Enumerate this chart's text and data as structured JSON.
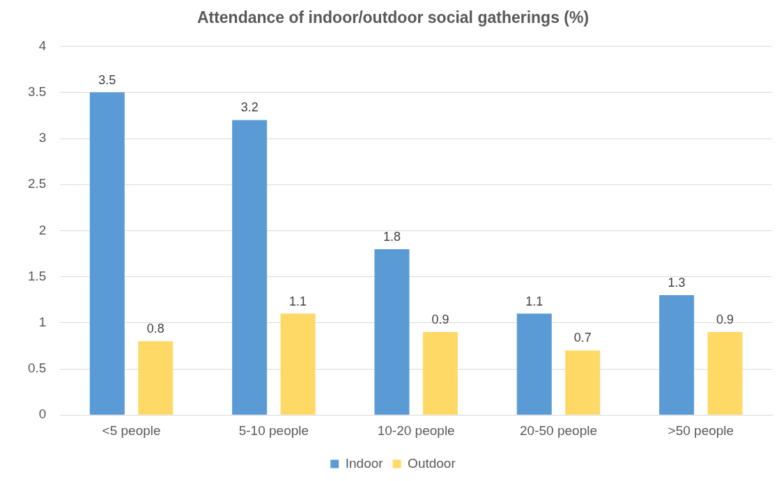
{
  "chart_data": {
    "type": "bar",
    "title": "Attendance of indoor/outdoor social gatherings (%)",
    "categories": [
      "<5 people",
      "5-10 people",
      "10-20 people",
      "20-50 people",
      ">50 people"
    ],
    "series": [
      {
        "name": "Indoor",
        "color": "#5b9bd5",
        "values": [
          3.5,
          3.2,
          1.8,
          1.1,
          1.3
        ]
      },
      {
        "name": "Outdoor",
        "color": "#ffd966",
        "values": [
          0.8,
          1.1,
          0.9,
          0.7,
          0.9
        ]
      }
    ],
    "ylim": [
      0,
      4
    ],
    "yticks": [
      0,
      0.5,
      1,
      1.5,
      2,
      2.5,
      3,
      3.5,
      4
    ],
    "grid": "y",
    "legend": "bottom",
    "data_labels": true
  }
}
